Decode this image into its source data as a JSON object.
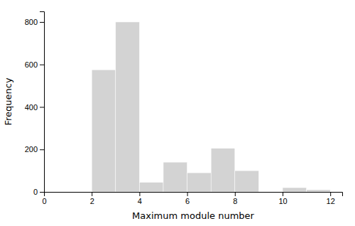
{
  "chart_data": {
    "type": "bar",
    "x": [
      2,
      3,
      4,
      5,
      6,
      7,
      8,
      10,
      11
    ],
    "values": [
      575,
      800,
      45,
      140,
      90,
      205,
      100,
      20,
      10
    ],
    "bar_width": 1,
    "color": "#d3d3d3",
    "xlabel": "Maximum module number",
    "ylabel": "Frequency",
    "xlim": [
      0,
      12.5
    ],
    "ylim": [
      0,
      850
    ],
    "xticks": [
      0,
      2,
      4,
      6,
      8,
      10,
      12
    ],
    "yticks": [
      0,
      200,
      400,
      600,
      800
    ]
  }
}
